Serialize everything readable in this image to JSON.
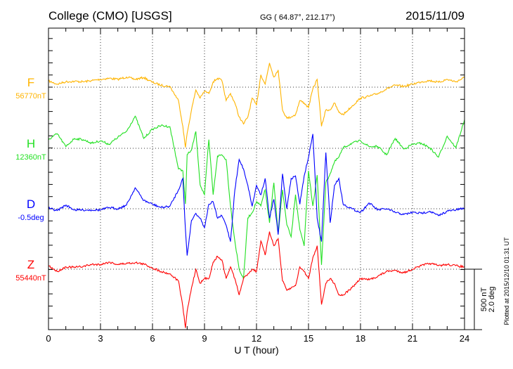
{
  "chart_data": {
    "type": "line",
    "title": "College (CMO)  [USGS]",
    "coords": "GG ( 64.87°, 212.17°)",
    "date": "2015/11/09",
    "xlabel": "U T (hour)",
    "xlim": [
      0,
      24
    ],
    "x_ticks": [
      "0",
      "3",
      "6",
      "9",
      "12",
      "15",
      "18",
      "21",
      "24"
    ],
    "grid": true,
    "scale_bar": {
      "nT": "500 nT",
      "deg": "2.0 deg"
    },
    "plotted_note": "Plotted at 2015/12/10 01:31  UT",
    "x": [
      0,
      0.5,
      1,
      1.5,
      2,
      2.5,
      3,
      3.5,
      4,
      4.5,
      5,
      5.5,
      6,
      6.5,
      7,
      7.5,
      7.75,
      7.9,
      8,
      8.25,
      8.5,
      8.75,
      9,
      9.25,
      9.5,
      9.75,
      10,
      10.25,
      10.5,
      10.75,
      11,
      11.25,
      11.5,
      11.75,
      12,
      12.25,
      12.5,
      12.75,
      13,
      13.25,
      13.5,
      13.75,
      14,
      14.25,
      14.5,
      14.75,
      15,
      15.25,
      15.5,
      15.75,
      16,
      16.25,
      16.5,
      16.75,
      17,
      17.5,
      18,
      18.5,
      19,
      19.5,
      20,
      20.5,
      21,
      21.5,
      22,
      22.5,
      23,
      23.5,
      24
    ],
    "series": [
      {
        "name": "F",
        "baseline_label": "56770nT",
        "unit": "nT",
        "color": "#ffb400",
        "values": [
          50,
          25,
          44,
          48,
          44,
          54,
          64,
          73,
          64,
          83,
          64,
          79,
          40,
          15,
          6,
          -110,
          -322,
          -496,
          -380,
          -187,
          -23,
          -90,
          -33,
          -52,
          44,
          73,
          54,
          -110,
          -52,
          -130,
          -245,
          -303,
          -245,
          -90,
          -149,
          102,
          25,
          199,
          83,
          141,
          -187,
          -255,
          -245,
          -226,
          -110,
          -130,
          -168,
          -14,
          64,
          -322,
          -187,
          -187,
          -130,
          -207,
          -226,
          -158,
          -90,
          -75,
          -52,
          -14,
          15,
          6,
          25,
          44,
          54,
          40,
          64,
          44,
          79
        ]
      },
      {
        "name": "H",
        "baseline_label": "12360nT",
        "unit": "nT",
        "color": "#22e022",
        "values": [
          71,
          120,
          14,
          81,
          71,
          42,
          62,
          33,
          91,
          139,
          264,
          81,
          158,
          187,
          178,
          -170,
          -185,
          -457,
          -52,
          -15,
          139,
          -301,
          -381,
          71,
          -381,
          -64,
          -54,
          -92,
          -474,
          -763,
          -994,
          -1075,
          -572,
          -530,
          -439,
          -474,
          -341,
          -613,
          -283,
          -705,
          -341,
          -630,
          -728,
          -381,
          -670,
          -803,
          -185,
          -474,
          -220,
          -959,
          -283,
          -208,
          -112,
          -73,
          4,
          42,
          62,
          14,
          14,
          -54,
          81,
          -6,
          33,
          42,
          4,
          -73,
          100,
          4,
          235
        ]
      },
      {
        "name": "D",
        "baseline_label": "-0.5deg",
        "unit": "deg",
        "color": "#0000ff",
        "values": [
          0.02,
          -0.06,
          0.12,
          -0.04,
          -0.04,
          -0.04,
          -0.04,
          0.04,
          0,
          0.12,
          0.69,
          0.27,
          0.15,
          0.04,
          0.08,
          0.62,
          1.0,
          -0.69,
          -1.54,
          -0.38,
          -0.15,
          -0.31,
          -0.62,
          0.15,
          0.23,
          -0.31,
          -0.23,
          -0.54,
          -1.08,
          0.62,
          1.62,
          1.31,
          0.77,
          0.08,
          0.77,
          0.46,
          1.0,
          -0.31,
          0.31,
          -0.85,
          1.15,
          0,
          1.0,
          1.08,
          0.15,
          1.08,
          1.69,
          2.46,
          -0.31,
          -1.08,
          1.85,
          -0.46,
          0.77,
          1.0,
          0.15,
          0,
          -0.12,
          0.19,
          -0.04,
          0,
          -0.12,
          -0.19,
          -0.12,
          -0.15,
          -0.08,
          -0.23,
          -0.08,
          -0.04,
          0.02
        ]
      },
      {
        "name": "Z",
        "baseline_label": "55440nT",
        "unit": "nT",
        "color": "#ff0000",
        "values": [
          29,
          -19,
          19,
          15,
          23,
          39,
          39,
          58,
          39,
          48,
          54,
          42,
          10,
          -19,
          -39,
          -96,
          -309,
          -483,
          -347,
          -154,
          0,
          -116,
          -77,
          -77,
          58,
          106,
          77,
          -77,
          19,
          -77,
          -212,
          -77,
          -39,
          0,
          -19,
          232,
          116,
          309,
          193,
          251,
          -96,
          -174,
          -154,
          -135,
          19,
          -19,
          -77,
          96,
          193,
          -290,
          -116,
          -77,
          -116,
          -212,
          -212,
          -154,
          -77,
          -87,
          -58,
          -19,
          -10,
          -29,
          0,
          29,
          48,
          29,
          39,
          29,
          19
        ]
      }
    ]
  }
}
